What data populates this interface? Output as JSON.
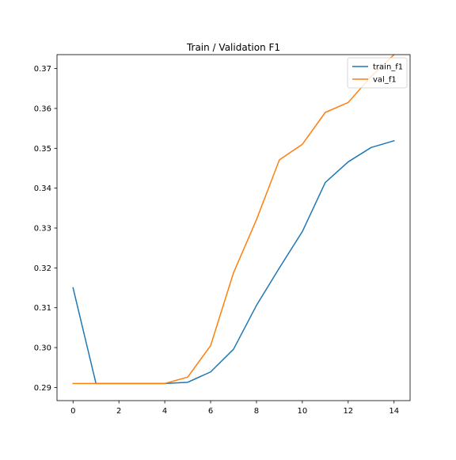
{
  "chart_data": {
    "type": "line",
    "title": "Train / Validation F1",
    "xlabel": "",
    "ylabel": "",
    "xlim": [
      -0.7,
      14.7
    ],
    "ylim": [
      0.2867,
      0.3735
    ],
    "xticks": [
      0,
      2,
      4,
      6,
      8,
      10,
      12,
      14
    ],
    "yticks": [
      0.29,
      0.3,
      0.31,
      0.32,
      0.33,
      0.34,
      0.35,
      0.36,
      0.37
    ],
    "ytick_labels": [
      "0.29",
      "0.30",
      "0.31",
      "0.32",
      "0.33",
      "0.34",
      "0.35",
      "0.36",
      "0.37"
    ],
    "grid": false,
    "legend_position": "top-right",
    "x": [
      0,
      1,
      2,
      3,
      4,
      5,
      6,
      7,
      8,
      9,
      10,
      11,
      12,
      13,
      14
    ],
    "series": [
      {
        "name": "train_f1",
        "color": "#1f77b4",
        "values": [
          0.315,
          0.291,
          0.291,
          0.291,
          0.291,
          0.2913,
          0.2939,
          0.2996,
          0.3106,
          0.32,
          0.3291,
          0.3414,
          0.3466,
          0.3502,
          0.3519
        ]
      },
      {
        "name": "val_f1",
        "color": "#ff7f0e",
        "values": [
          0.291,
          0.291,
          0.291,
          0.291,
          0.291,
          0.2926,
          0.3005,
          0.3188,
          0.3321,
          0.3471,
          0.351,
          0.359,
          0.3615,
          0.368,
          0.3735
        ]
      }
    ]
  }
}
